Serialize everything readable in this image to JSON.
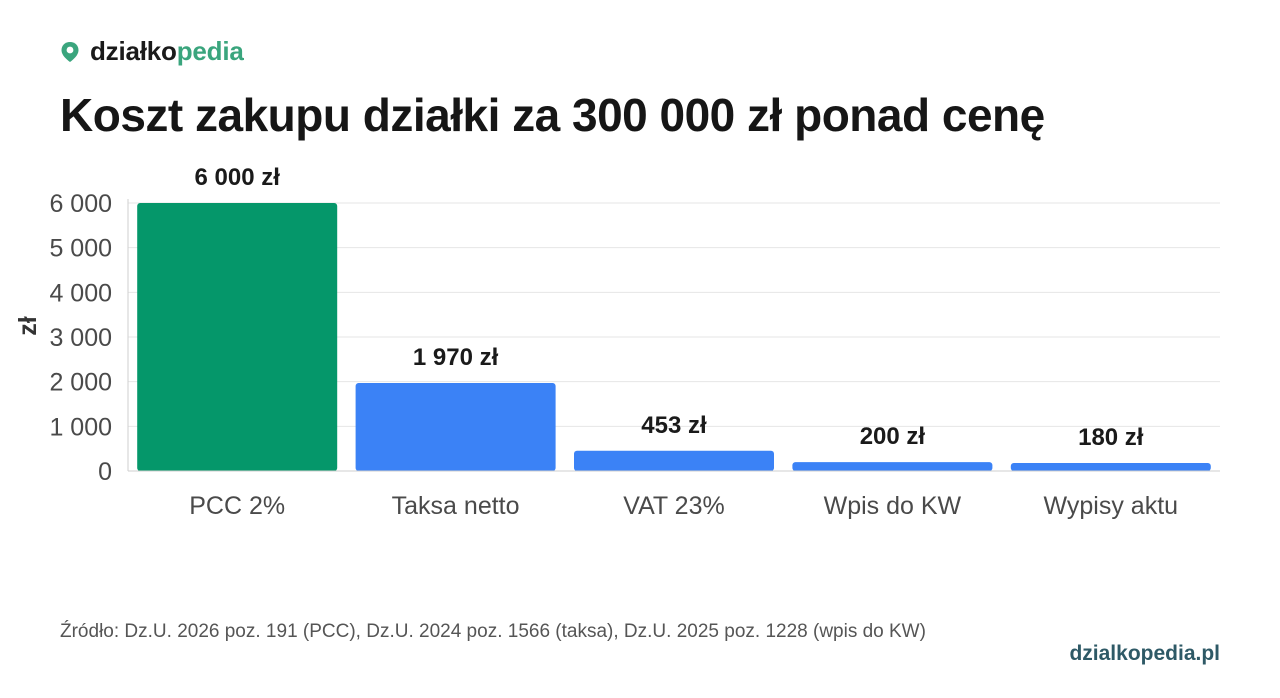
{
  "brand": {
    "name_part1": "działko",
    "name_part2": "pedia",
    "icon": "map-pin-icon"
  },
  "title": "Koszt zakupu działki za 300 000 zł ponad cenę",
  "chart_data": {
    "type": "bar",
    "categories": [
      "PCC 2%",
      "Taksa netto",
      "VAT 23%",
      "Wpis do KW",
      "Wypisy aktu"
    ],
    "values": [
      6000,
      1970,
      453,
      200,
      180
    ],
    "value_labels": [
      "6 000 zł",
      "1 970 zł",
      "453 zł",
      "200 zł",
      "180 zł"
    ],
    "colors": [
      "#05976a",
      "#3b82f6",
      "#3b82f6",
      "#3b82f6",
      "#3b82f6"
    ],
    "ylabel": "zł",
    "ylim": [
      0,
      6000
    ],
    "yticks": [
      0,
      1000,
      2000,
      3000,
      4000,
      5000,
      6000
    ],
    "ytick_labels": [
      "0",
      "1 000",
      "2 000",
      "3 000",
      "4 000",
      "5 000",
      "6 000"
    ],
    "grid": true
  },
  "source_text": "Źródło: Dz.U. 2026 poz. 191 (PCC), Dz.U. 2024 poz. 1566 (taksa), Dz.U. 2025 poz. 1228 (wpis do KW)",
  "footer_link": "dzialkopedia.pl"
}
